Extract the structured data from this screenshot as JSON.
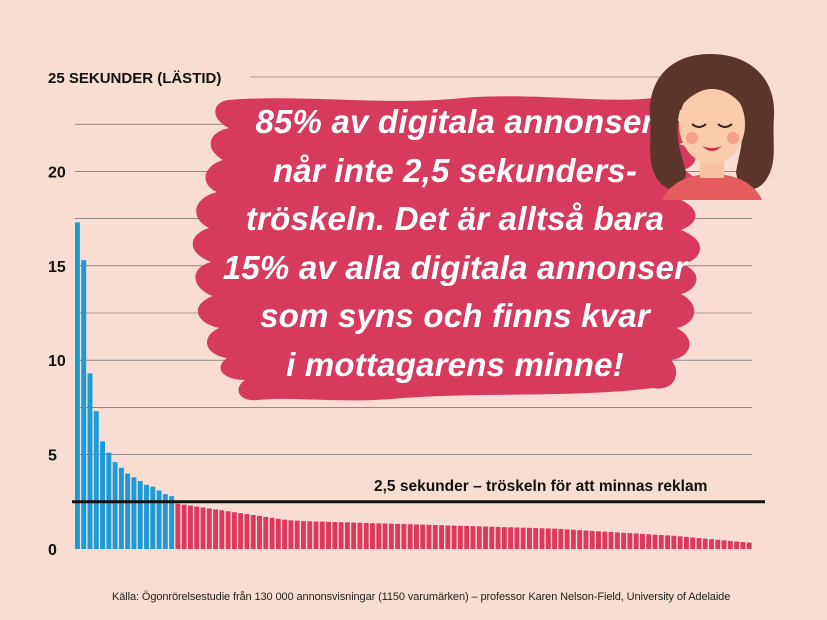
{
  "chart_data": {
    "type": "bar",
    "ylabel": "25 SEKUNDER (LÄSTID)",
    "ylim": [
      0,
      25
    ],
    "yticks": [
      0,
      5,
      10,
      15,
      20,
      25
    ],
    "ytick_labels": [
      "0",
      "5",
      "10",
      "15",
      "20",
      "25 SEKUNDER (LÄSTID)"
    ],
    "threshold": {
      "value": 2.5,
      "label": "2,5 sekunder – tröskeln för att minnas reklam"
    },
    "colors": {
      "above_threshold": "#1d9bd7",
      "below_threshold": "#db3a5e"
    },
    "values": [
      17.3,
      15.3,
      9.3,
      7.3,
      5.7,
      5.1,
      4.6,
      4.3,
      4.0,
      3.8,
      3.6,
      3.4,
      3.3,
      3.1,
      2.9,
      2.8,
      2.4,
      2.35,
      2.3,
      2.25,
      2.2,
      2.15,
      2.1,
      2.05,
      2.0,
      1.95,
      1.9,
      1.85,
      1.8,
      1.75,
      1.7,
      1.65,
      1.6,
      1.55,
      1.52,
      1.5,
      1.48,
      1.47,
      1.46,
      1.45,
      1.44,
      1.43,
      1.42,
      1.41,
      1.4,
      1.39,
      1.38,
      1.37,
      1.36,
      1.35,
      1.34,
      1.33,
      1.32,
      1.31,
      1.3,
      1.29,
      1.28,
      1.27,
      1.26,
      1.25,
      1.24,
      1.23,
      1.22,
      1.21,
      1.2,
      1.19,
      1.18,
      1.17,
      1.16,
      1.15,
      1.14,
      1.13,
      1.12,
      1.11,
      1.1,
      1.09,
      1.08,
      1.06,
      1.04,
      1.02,
      1.0,
      0.98,
      0.96,
      0.94,
      0.92,
      0.9,
      0.88,
      0.86,
      0.84,
      0.82,
      0.8,
      0.78,
      0.76,
      0.74,
      0.72,
      0.7,
      0.67,
      0.64,
      0.61,
      0.58,
      0.55,
      0.52,
      0.49,
      0.46,
      0.43,
      0.4,
      0.37,
      0.34
    ]
  },
  "callout": {
    "lines": [
      "85% av digitala annonser",
      "når inte 2,5 sekunders-",
      "tröskeln. Det är alltså bara",
      "15% av alla digitala annonser",
      "som syns och finns kvar",
      "i mottagarens minne!"
    ],
    "color": "#d63a5c"
  },
  "source": "Källa: Ögonrörelsestudie från 130 000 annonsvisningar (1150 varumärken) – professor Karen Nelson-Field, University of Adelaide",
  "illustration": {
    "name": "smiling-woman-illustration"
  }
}
